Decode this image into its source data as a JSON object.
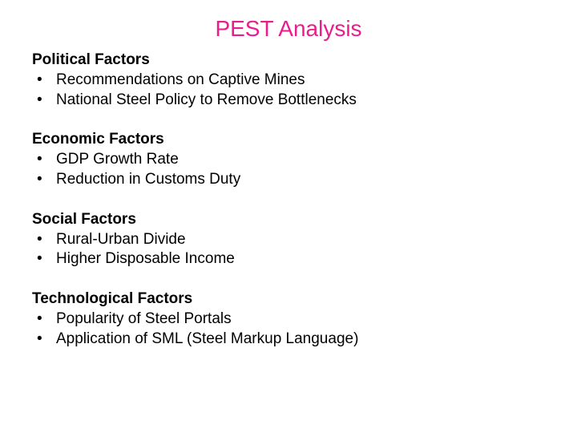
{
  "title": "PEST Analysis",
  "title_color": "#e91e8c",
  "title_fontsize": 28,
  "body_fontsize": 19,
  "body_color": "#000000",
  "background_color": "#ffffff",
  "sections": [
    {
      "heading": "Political Factors",
      "bullets": [
        "Recommendations on Captive Mines",
        "National Steel Policy to Remove Bottlenecks"
      ]
    },
    {
      "heading": "Economic Factors",
      "bullets": [
        "GDP Growth Rate",
        "Reduction in Customs Duty"
      ]
    },
    {
      "heading": "Social Factors",
      "bullets": [
        "Rural-Urban Divide",
        "Higher Disposable Income"
      ]
    },
    {
      "heading": "Technological Factors",
      "bullets": [
        "Popularity of Steel Portals",
        "Application of SML (Steel Markup Language)"
      ]
    }
  ]
}
